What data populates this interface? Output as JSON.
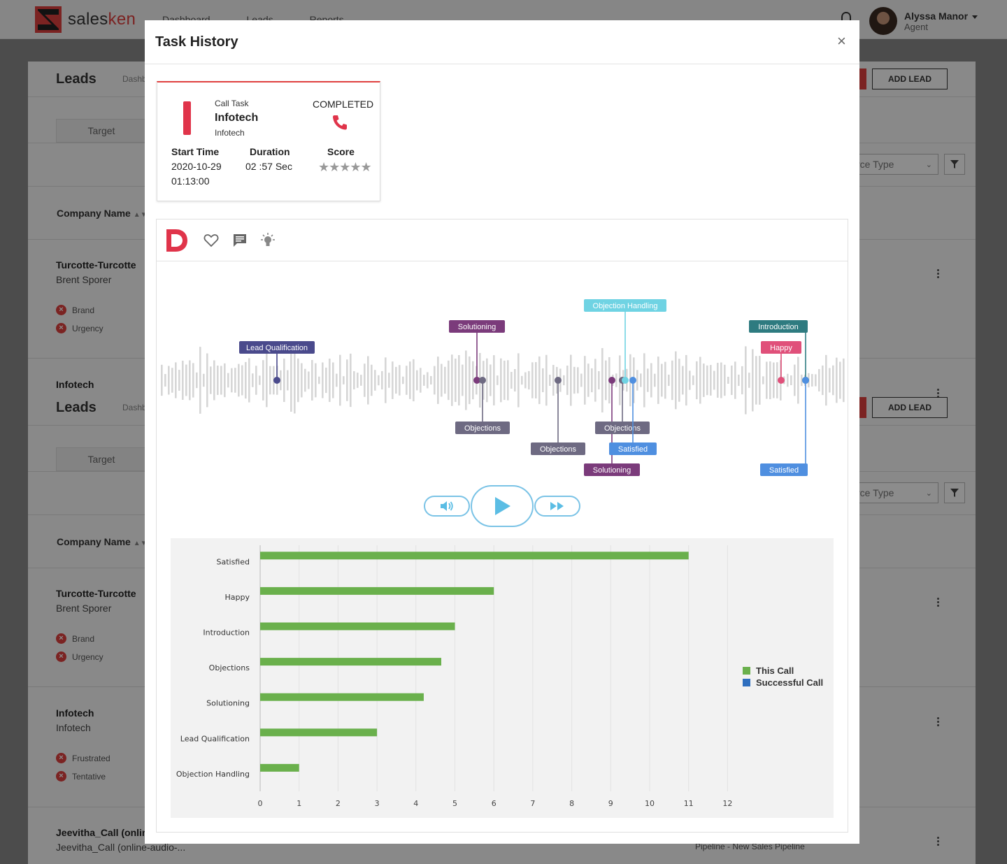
{
  "app": {
    "logo_left": "sales",
    "logo_right": "ken",
    "nav": [
      "Dashboard",
      "Leads",
      "Reports"
    ],
    "user_name": "Alyssa Manor",
    "user_role": "Agent"
  },
  "background": {
    "page_title": "Leads",
    "dashboard_crumb": "Dashb",
    "add_lead": "ADD LEAD",
    "target_tab": "Target",
    "source_select": "rce Type",
    "column_company": "Company Name",
    "rows": [
      {
        "company": "Turcotte-Turcotte",
        "contact": "Brent Sporer",
        "tags": [
          "Brand",
          "Urgency"
        ]
      },
      {
        "company": "Infotech",
        "contact": "Infotech",
        "tags": [
          "Frustrated",
          "Tentative"
        ]
      },
      {
        "company": "Jeevitha_Call (online",
        "contact": "Jeevitha_Call (online-audio-..."
      }
    ],
    "pipeline_text": "Pipeline - New Sales Pipeline"
  },
  "modal": {
    "title": "Task History",
    "close_glyph": "×"
  },
  "task_card": {
    "type": "Call Task",
    "name": "Infotech",
    "sub": "Infotech",
    "status": "COMPLETED",
    "start_time_label": "Start Time",
    "start_date": "2020-10-29",
    "start_clock": "01:13:00",
    "duration_label": "Duration",
    "duration": "02 :57 Sec",
    "score_label": "Score",
    "stars": "★★★★★",
    "accent": "#e0344a"
  },
  "toolbar": {
    "icons": [
      "brand-d-icon",
      "heart-icon",
      "comment-icon",
      "bulb-icon"
    ]
  },
  "waveform": {
    "markers": [
      {
        "label": "Lead Qualification",
        "color": "#4a4a8c"
      },
      {
        "label": "Solutioning",
        "color": "#7b3b7b"
      },
      {
        "label": "Objections",
        "color": "#6e6a82"
      },
      {
        "label": "Objections",
        "color": "#6e6a82"
      },
      {
        "label": "Solutioning",
        "color": "#7b3b7b"
      },
      {
        "label": "Objections",
        "color": "#6e6a82"
      },
      {
        "label": "Objection Handling",
        "color": "#6fd3e3"
      },
      {
        "label": "Satisfied",
        "color": "#4f8fe0"
      },
      {
        "label": "Happy",
        "color": "#e0507a"
      },
      {
        "label": "Introduction",
        "color": "#2e7b80"
      },
      {
        "label": "Satisfied",
        "color": "#4f8fe0"
      }
    ]
  },
  "controls": {
    "volume_icon": "volume-icon",
    "play_icon": "play-icon",
    "fast_forward_icon": "fast-forward-icon",
    "accent": "#5bbde4"
  },
  "chart_data": {
    "type": "bar",
    "orientation": "horizontal",
    "categories": [
      "Satisfied",
      "Happy",
      "Introduction",
      "Objections",
      "Solutioning",
      "Lead Qualification",
      "Objection Handling"
    ],
    "series": [
      {
        "name": "This Call",
        "color": "#6ab04c",
        "values": [
          11,
          6,
          5,
          4.65,
          4.2,
          3,
          1
        ]
      },
      {
        "name": "Successful Call",
        "color": "#2f6fbf",
        "values": [
          0,
          0,
          0,
          0,
          0,
          0,
          0
        ]
      }
    ],
    "xlim": [
      0,
      12
    ],
    "xticks": [
      0,
      1,
      2,
      3,
      4,
      5,
      6,
      7,
      8,
      9,
      10,
      11,
      12
    ],
    "grid": true,
    "legend_position": "right"
  }
}
